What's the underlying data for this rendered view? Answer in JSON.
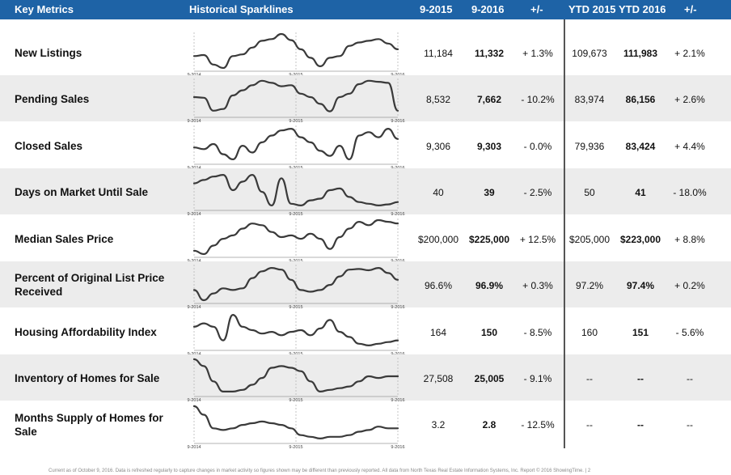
{
  "header": {
    "key_metrics": "Key Metrics",
    "sparklines": "Historical Sparklines",
    "col_2015": "9-2015",
    "col_2016": "9-2016",
    "col_change": "+/-",
    "col_ytd_2015": "YTD 2015",
    "col_ytd_2016": "YTD 2016",
    "col_ytd_change": "+/-"
  },
  "spark_axis": {
    "start": "9-2014",
    "mid": "9-2015",
    "end": "9-2016"
  },
  "rows": [
    {
      "label": "New Listings",
      "v2015": "11,184",
      "v2016": "11,332",
      "change": "+ 1.3%",
      "ytd2015": "109,673",
      "ytd2016": "111,983",
      "ytd_change": "+ 2.1%",
      "spark": [
        0.35,
        0.38,
        0.1,
        0.0,
        0.35,
        0.4,
        0.6,
        0.8,
        0.85,
        1.0,
        0.82,
        0.55,
        0.3,
        0.05,
        0.3,
        0.35,
        0.65,
        0.75,
        0.8,
        0.85,
        0.72,
        0.55
      ]
    },
    {
      "label": "Pending Sales",
      "v2015": "8,532",
      "v2016": "7,662",
      "change": "- 10.2%",
      "ytd2015": "83,974",
      "ytd2016": "86,156",
      "ytd_change": "+ 2.6%",
      "spark": [
        0.5,
        0.48,
        0.1,
        0.15,
        0.55,
        0.7,
        0.85,
        0.98,
        0.92,
        0.82,
        0.85,
        0.6,
        0.5,
        0.3,
        0.08,
        0.5,
        0.6,
        0.88,
        0.98,
        0.95,
        0.92,
        0.1
      ]
    },
    {
      "label": "Closed Sales",
      "v2015": "9,306",
      "v2016": "9,303",
      "change": "- 0.0%",
      "ytd2015": "79,936",
      "ytd2016": "83,424",
      "ytd_change": "+ 4.4%",
      "spark": [
        0.4,
        0.35,
        0.5,
        0.2,
        0.05,
        0.45,
        0.25,
        0.55,
        0.75,
        0.9,
        0.95,
        0.7,
        0.55,
        0.3,
        0.15,
        0.45,
        0.05,
        0.75,
        0.85,
        0.7,
        0.95,
        0.65
      ]
    },
    {
      "label": "Days on Market Until Sale",
      "v2015": "40",
      "v2016": "39",
      "change": "- 2.5%",
      "ytd2015": "50",
      "ytd2016": "41",
      "ytd_change": "- 18.0%",
      "spark": [
        0.7,
        0.8,
        0.9,
        0.95,
        0.5,
        0.75,
        0.95,
        0.45,
        0.05,
        0.85,
        0.1,
        0.05,
        0.2,
        0.25,
        0.5,
        0.55,
        0.3,
        0.15,
        0.1,
        0.05,
        0.08,
        0.15
      ]
    },
    {
      "label": "Median Sales Price",
      "v2015": "$200,000",
      "v2016": "$225,000",
      "change": "+ 12.5%",
      "ytd2015": "$205,000",
      "ytd2016": "$223,000",
      "ytd_change": "+ 8.8%",
      "spark": [
        0.1,
        0.0,
        0.25,
        0.45,
        0.55,
        0.75,
        0.9,
        0.85,
        0.65,
        0.5,
        0.55,
        0.45,
        0.6,
        0.45,
        0.15,
        0.5,
        0.75,
        0.95,
        0.85,
        1.0,
        0.95,
        0.9
      ]
    },
    {
      "label": "Percent of Original List Price Received",
      "v2015": "96.6%",
      "v2016": "96.9%",
      "change": "+ 0.3%",
      "ytd2015": "97.2%",
      "ytd2016": "97.4%",
      "ytd_change": "+ 0.2%",
      "spark": [
        0.3,
        0.0,
        0.2,
        0.35,
        0.3,
        0.35,
        0.65,
        0.85,
        0.95,
        0.9,
        0.6,
        0.3,
        0.25,
        0.3,
        0.45,
        0.7,
        0.9,
        0.92,
        0.88,
        0.95,
        0.8,
        0.6
      ]
    },
    {
      "label": "Housing Affordability Index",
      "v2015": "164",
      "v2016": "150",
      "change": "- 8.5%",
      "ytd2015": "160",
      "ytd2016": "151",
      "ytd_change": "- 5.6%",
      "spark": [
        0.6,
        0.7,
        0.6,
        0.2,
        0.95,
        0.6,
        0.5,
        0.4,
        0.45,
        0.35,
        0.45,
        0.5,
        0.35,
        0.55,
        0.8,
        0.45,
        0.3,
        0.1,
        0.05,
        0.1,
        0.15,
        0.2
      ]
    },
    {
      "label": "Inventory of Homes for Sale",
      "v2015": "27,508",
      "v2016": "25,005",
      "change": "- 9.1%",
      "ytd2015": "--",
      "ytd2016": "--",
      "ytd_change": "--",
      "spark": [
        1.0,
        0.8,
        0.35,
        0.05,
        0.05,
        0.1,
        0.25,
        0.45,
        0.75,
        0.8,
        0.75,
        0.65,
        0.35,
        0.05,
        0.1,
        0.15,
        0.2,
        0.35,
        0.5,
        0.45,
        0.5,
        0.5
      ]
    },
    {
      "label": "Months Supply of Homes for Sale",
      "v2015": "3.2",
      "v2016": "2.8",
      "change": "- 12.5%",
      "ytd2015": "--",
      "ytd2016": "--",
      "ytd_change": "--",
      "spark": [
        1.0,
        0.75,
        0.35,
        0.3,
        0.35,
        0.45,
        0.5,
        0.55,
        0.5,
        0.45,
        0.35,
        0.15,
        0.1,
        0.05,
        0.1,
        0.1,
        0.15,
        0.25,
        0.3,
        0.4,
        0.35,
        0.35
      ]
    }
  ],
  "footer": "Current as of October 9, 2016. Data is refreshed regularly to capture changes in market activity so figures shown may be different than previously reported. All data from North Texas Real Estate Information Systems, Inc. Report © 2016 ShowingTime. | 2"
}
